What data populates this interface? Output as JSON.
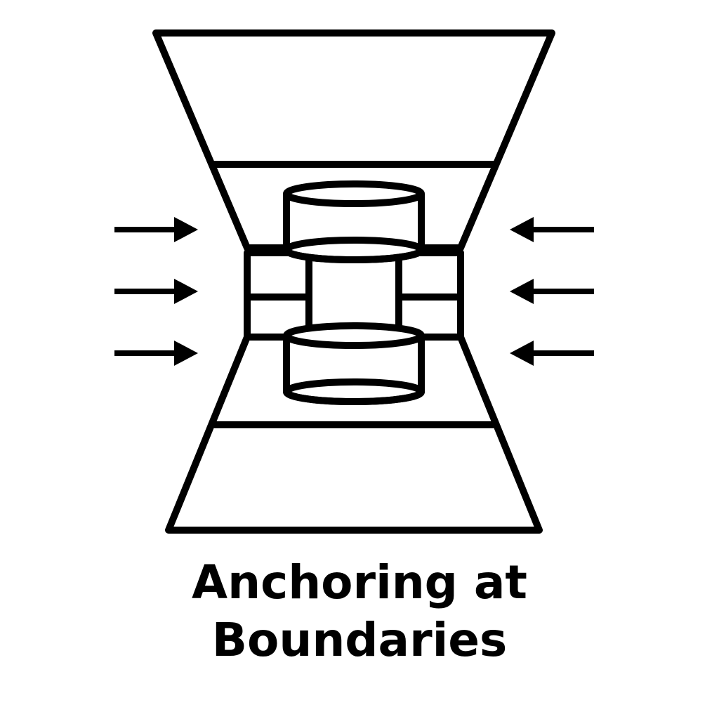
{
  "title": {
    "line1": "Anchoring at",
    "line2": "Boundaries"
  },
  "colors": {
    "stroke": "#000000",
    "background": "#ffffff"
  },
  "arrows": {
    "left": [
      "arrow-right",
      "arrow-right",
      "arrow-right"
    ],
    "right": [
      "arrow-left",
      "arrow-left",
      "arrow-left"
    ]
  }
}
